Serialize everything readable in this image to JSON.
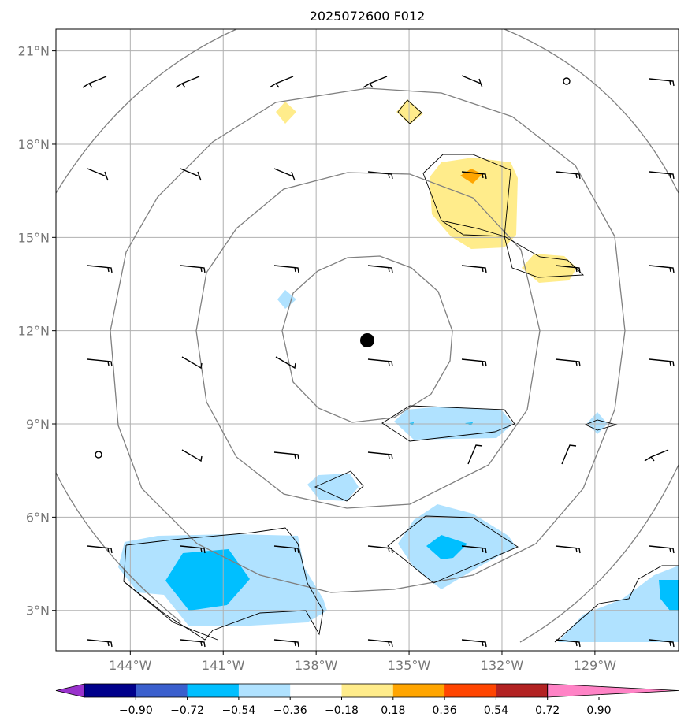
{
  "title": "2025072600 F012",
  "lon_ticks": [
    {
      "lon": -144,
      "label": "144°W"
    },
    {
      "lon": -141,
      "label": "141°W"
    },
    {
      "lon": -138,
      "label": "138°W"
    },
    {
      "lon": -135,
      "label": "135°W"
    },
    {
      "lon": -132,
      "label": "132°W"
    },
    {
      "lon": -129,
      "label": "129°W"
    }
  ],
  "lat_ticks": [
    {
      "lat": 21,
      "label": "21°N"
    },
    {
      "lat": 18,
      "label": "18°N"
    },
    {
      "lat": 15,
      "label": "15°N"
    },
    {
      "lat": 12,
      "label": "12°N"
    },
    {
      "lat": 9,
      "label": "9°N"
    },
    {
      "lat": 6,
      "label": "6°N"
    },
    {
      "lat": 3,
      "label": "3°N"
    }
  ],
  "extent": {
    "lon_min": -146.4,
    "lon_max": -126.3,
    "lat_min": 1.7,
    "lat_max": 21.7
  },
  "storm_center": {
    "lon": -136.3,
    "lat": 11.65
  },
  "colorbar": {
    "colors": [
      "#9932cc",
      "#00008b",
      "#3a5fcd",
      "#00bfff",
      "#b0e2ff",
      "#ffffff",
      "#ffec8b",
      "#ffa500",
      "#ff4500",
      "#b22222",
      "#ff83c6"
    ],
    "labels": [
      "−0.90",
      "−0.72",
      "−0.54",
      "−0.36",
      "−0.18",
      "0.18",
      "0.36",
      "0.54",
      "0.72",
      "0.90"
    ]
  },
  "colors": {
    "contour": "#808080",
    "grid": "#b0b0b0",
    "positive_fill": "#ffec8b",
    "positive_core": "#ffa500",
    "negative_fill": "#b0e2ff",
    "negative_core": "#00bfff"
  }
}
